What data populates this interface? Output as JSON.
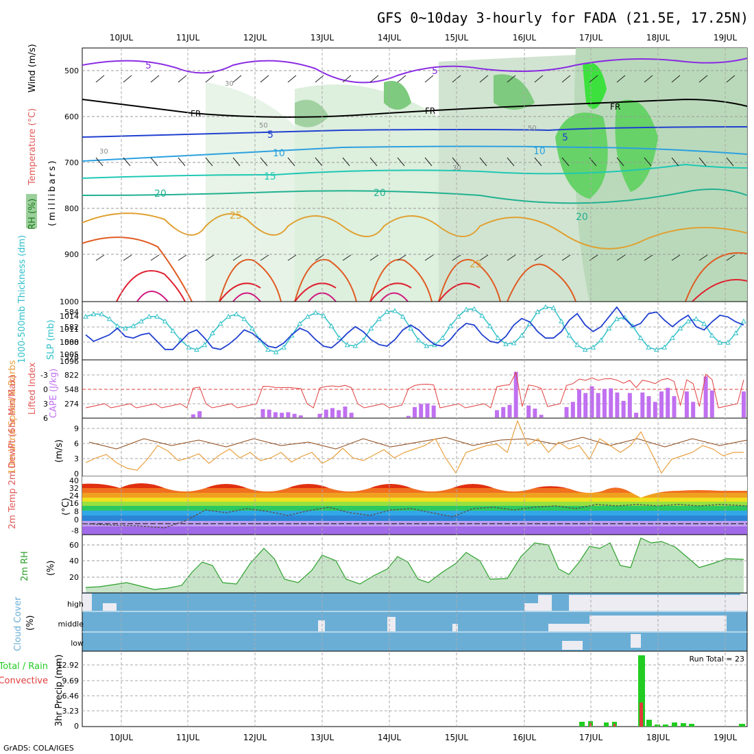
{
  "title": "GFS 0~10day 3-hourly for FADA (21.5E, 17.25N)",
  "credit": "GrADS: COLA/IGES",
  "dates": [
    "10JUL",
    "11JUL",
    "12JUL",
    "13JUL",
    "14JUL",
    "15JUL",
    "16JUL",
    "17JUL",
    "18JUL",
    "19JUL"
  ],
  "panels": {
    "profile": {
      "ylabel_rh": "RH (%)",
      "ylabel_temp": "Temperature (°C)",
      "ylabel_wind": "Wind (m/s)",
      "ylabel_p": "(millibars)",
      "y_ticks": [
        "500",
        "600",
        "700",
        "800",
        "900",
        "1000"
      ],
      "contour_labels": [
        "5",
        "5",
        "FR",
        "FR",
        "FR",
        "5",
        "5",
        "10",
        "10",
        "15",
        "20",
        "20",
        "20",
        "25",
        "25",
        "30",
        "30",
        "50",
        "50",
        "30"
      ]
    },
    "slp": {
      "ylabel": "1000-500mb Thickness (dm)",
      "ylabel2": "SLP (mb)",
      "y_left": [
        "584",
        "582",
        "580",
        "578"
      ],
      "y_right": [
        "1014",
        "1011",
        "1008",
        "1005"
      ]
    },
    "cape": {
      "ylabel": "Lifted Index",
      "ylabel2": "CAPE (J/kg)",
      "y_left": [
        "-3",
        "0",
        "3",
        "6"
      ],
      "y_right": [
        "1096",
        "822",
        "548",
        "274"
      ]
    },
    "wind10": {
      "ylabel": "10m Wind Speed & Barbs",
      "unit": "(m/s)",
      "y_ticks": [
        "9",
        "6",
        "3",
        "0"
      ]
    },
    "temp2m": {
      "ylabel": "2m Temp 2m DewPt (6hr Min/Max)",
      "unit": "(°C)",
      "y_ticks": [
        "40",
        "32",
        "24",
        "16",
        "8",
        "0",
        "-8"
      ]
    },
    "rh2m": {
      "ylabel": "2m RH",
      "unit": "(%)",
      "y_ticks": [
        "60",
        "40",
        "20"
      ]
    },
    "cloud": {
      "ylabel": "Cloud Cover",
      "unit": "(%)",
      "levels": [
        "high",
        "middle",
        "low"
      ]
    },
    "precip": {
      "ylabel": "3hr Precip (mm)",
      "ylabel2": "Total / Rain",
      "ylabel3": "Convective",
      "y_ticks": [
        "12.92",
        "9.69",
        "6.46",
        "3.23",
        "0"
      ],
      "run_total": "Run Total = 23"
    }
  },
  "colors": {
    "thickness": "#1f3fd0",
    "slp": "#30c0c8",
    "lifted_index": "#e03c3c",
    "cape": "#c070f0",
    "wind": "#e8a040",
    "rh": "#2ca02c",
    "cloud": "#6aaed6",
    "rain_total": "#22cc22",
    "rain_conv": "#e03c3c"
  },
  "chart_data": [
    {
      "type": "line",
      "name": "thickness",
      "ylim": [
        578,
        585
      ],
      "values": [
        581.0,
        580.2,
        580.6,
        581.0,
        581.8,
        580.8,
        580.6,
        581.0,
        581.2,
        580.2,
        579.2,
        579.2,
        580.2,
        581.2,
        581.6,
        580.6,
        579.4,
        579.2,
        579.8,
        580.6,
        581.6,
        581.2,
        580.4,
        579.6,
        579.4,
        580.0,
        581.0,
        581.8,
        581.4,
        580.4,
        579.6,
        579.4,
        580.2,
        581.2,
        582.0,
        581.4,
        580.4,
        579.8,
        579.6,
        580.4,
        581.6,
        582.2,
        581.6,
        580.6,
        579.8,
        579.6,
        580.4,
        581.6,
        582.4,
        582.2,
        581.0,
        580.2,
        580.0,
        580.8,
        582.2,
        583.0,
        582.6,
        581.4,
        580.6,
        580.6,
        581.4,
        582.8,
        583.6,
        582.2,
        581.4,
        582.0,
        583.2,
        584.4,
        583.0,
        582.0,
        582.4,
        583.6,
        583.8,
        582.8,
        582.0,
        582.8,
        583.4,
        582.0,
        581.6,
        582.6,
        583.4,
        583.2,
        582.6,
        582.2
      ]
    },
    {
      "type": "line",
      "name": "slp",
      "ylim": [
        1004,
        1016
      ],
      "values": [
        1013,
        1013.5,
        1013.5,
        1012.5,
        1011,
        1010.5,
        1011,
        1012,
        1013,
        1013,
        1012,
        1010,
        1008,
        1006.5,
        1006,
        1007,
        1009.5,
        1011.5,
        1013,
        1013.5,
        1012.5,
        1010.5,
        1008,
        1006,
        1005.5,
        1006.5,
        1009,
        1011.5,
        1013,
        1013.8,
        1013.2,
        1011,
        1008.5,
        1007,
        1006.8,
        1008,
        1010.5,
        1012.5,
        1014,
        1014.2,
        1013,
        1010.5,
        1008,
        1006.8,
        1007,
        1008.5,
        1011,
        1013,
        1014.5,
        1014.6,
        1013.2,
        1011,
        1008.5,
        1007.2,
        1007.4,
        1009,
        1011.5,
        1014,
        1015,
        1014.8,
        1012,
        1009,
        1007,
        1006,
        1006.5,
        1008,
        1010.5,
        1012.5,
        1012.8,
        1011,
        1008.5,
        1006.5,
        1006,
        1006.5,
        1008.5,
        1010.5,
        1012,
        1012.5,
        1011.5,
        1009,
        1007.5,
        1007.5,
        1009.5,
        1012
      ]
    },
    {
      "type": "bar",
      "name": "cape",
      "ylim": [
        0,
        1096
      ],
      "values": [
        0,
        0,
        0,
        0,
        0,
        0,
        0,
        0,
        0,
        0,
        0,
        0,
        0,
        0,
        0,
        0,
        0,
        60,
        120,
        0,
        0,
        0,
        0,
        0,
        0,
        0,
        0,
        0,
        160,
        150,
        100,
        90,
        100,
        70,
        40,
        0,
        0,
        70,
        150,
        180,
        140,
        210,
        90,
        0,
        0,
        0,
        0,
        0,
        0,
        0,
        0,
        30,
        200,
        260,
        270,
        230,
        0,
        0,
        0,
        0,
        0,
        0,
        0,
        0,
        0,
        140,
        200,
        240,
        880,
        0,
        230,
        170,
        50,
        0,
        0,
        0,
        200,
        300,
        540,
        470,
        600,
        470,
        550,
        560,
        480,
        320,
        470,
        90,
        480,
        410,
        300,
        500,
        570,
        410,
        0,
        500,
        300,
        0,
        790,
        520,
        0,
        0,
        0,
        0,
        500
      ]
    }
  ]
}
